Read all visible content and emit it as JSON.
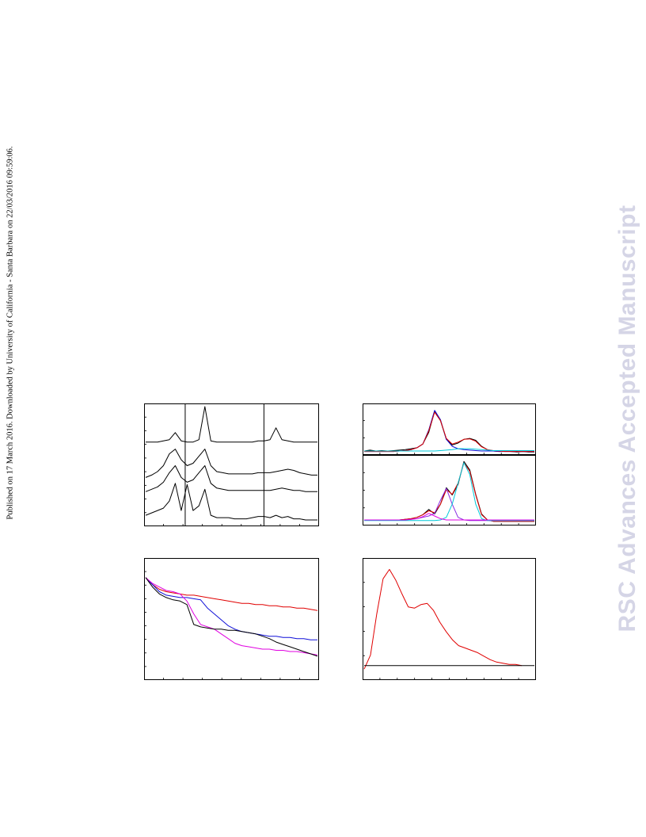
{
  "side_note": "Published on 17 March 2016. Downloaded by University of California - Santa Barbara on 22/03/2016 09:59:06.",
  "watermark": "RSC Advances Accepted Manuscript",
  "colors": {
    "black": "#000000",
    "red": "#e00000",
    "blue": "#1010d8",
    "magenta": "#e000e0",
    "cyan": "#00c8d8",
    "purple": "#8a2be2"
  },
  "chart_data": [
    {
      "type": "line",
      "panel": "top-left",
      "grid": false,
      "series": [
        {
          "color": "black",
          "y": [
            0.7,
            0.7,
            0.7,
            0.71,
            0.72,
            0.78,
            0.71,
            0.7,
            0.7,
            0.72,
            1.0,
            0.71,
            0.7,
            0.7,
            0.7,
            0.7,
            0.7,
            0.7,
            0.7,
            0.71,
            0.71,
            0.72,
            0.82,
            0.72,
            0.71,
            0.7,
            0.7,
            0.7,
            0.7,
            0.7
          ]
        },
        {
          "color": "black",
          "y": [
            0.4,
            0.42,
            0.45,
            0.5,
            0.6,
            0.64,
            0.55,
            0.5,
            0.52,
            0.58,
            0.64,
            0.5,
            0.45,
            0.44,
            0.43,
            0.43,
            0.43,
            0.43,
            0.43,
            0.44,
            0.44,
            0.44,
            0.45,
            0.46,
            0.47,
            0.46,
            0.44,
            0.43,
            0.42,
            0.42
          ]
        },
        {
          "color": "black",
          "y": [
            0.28,
            0.3,
            0.32,
            0.36,
            0.44,
            0.5,
            0.4,
            0.36,
            0.38,
            0.44,
            0.5,
            0.35,
            0.31,
            0.3,
            0.29,
            0.29,
            0.29,
            0.29,
            0.29,
            0.29,
            0.29,
            0.29,
            0.3,
            0.31,
            0.3,
            0.29,
            0.29,
            0.28,
            0.28,
            0.28
          ]
        },
        {
          "color": "black",
          "y": [
            0.08,
            0.1,
            0.12,
            0.14,
            0.2,
            0.35,
            0.12,
            0.34,
            0.12,
            0.16,
            0.3,
            0.08,
            0.06,
            0.06,
            0.06,
            0.05,
            0.05,
            0.05,
            0.06,
            0.07,
            0.07,
            0.06,
            0.08,
            0.06,
            0.07,
            0.05,
            0.05,
            0.04,
            0.04,
            0.04
          ]
        }
      ],
      "reference_lines_x_fraction": [
        0.235,
        0.685
      ]
    },
    {
      "type": "line",
      "panel": "top-right-upper",
      "grid": false,
      "series": [
        {
          "color": "black",
          "y": [
            0.05,
            0.07,
            0.05,
            0.06,
            0.05,
            0.06,
            0.07,
            0.08,
            0.1,
            0.12,
            0.2,
            0.45,
            0.9,
            0.7,
            0.3,
            0.18,
            0.22,
            0.3,
            0.32,
            0.28,
            0.15,
            0.08,
            0.05,
            0.04,
            0.05,
            0.04,
            0.03,
            0.04,
            0.03,
            0.03
          ]
        },
        {
          "color": "blue",
          "y": [
            0.04,
            0.04,
            0.04,
            0.04,
            0.04,
            0.04,
            0.05,
            0.06,
            0.08,
            0.12,
            0.2,
            0.5,
            0.92,
            0.72,
            0.3,
            0.15,
            0.1,
            0.08,
            0.07,
            0.06,
            0.05,
            0.05,
            0.05,
            0.04,
            0.04,
            0.04,
            0.04,
            0.04,
            0.04,
            0.04
          ]
        },
        {
          "color": "red",
          "y": [
            0.04,
            0.04,
            0.04,
            0.04,
            0.04,
            0.04,
            0.05,
            0.06,
            0.08,
            0.12,
            0.2,
            0.48,
            0.88,
            0.7,
            0.32,
            0.2,
            0.24,
            0.3,
            0.31,
            0.26,
            0.14,
            0.08,
            0.06,
            0.05,
            0.04,
            0.04,
            0.04,
            0.04,
            0.04,
            0.04
          ]
        },
        {
          "color": "cyan",
          "y": [
            0.05,
            0.05,
            0.05,
            0.05,
            0.05,
            0.05,
            0.05,
            0.05,
            0.05,
            0.05,
            0.05,
            0.05,
            0.05,
            0.06,
            0.07,
            0.08,
            0.1,
            0.1,
            0.1,
            0.09,
            0.08,
            0.07,
            0.06,
            0.06,
            0.06,
            0.06,
            0.06,
            0.06,
            0.06,
            0.06
          ]
        }
      ]
    },
    {
      "type": "line",
      "panel": "top-right-lower",
      "grid": false,
      "series": [
        {
          "color": "black",
          "y": [
            0.06,
            0.06,
            0.06,
            0.06,
            0.06,
            0.06,
            0.06,
            0.07,
            0.08,
            0.1,
            0.14,
            0.22,
            0.15,
            0.3,
            0.55,
            0.44,
            0.6,
            0.95,
            0.82,
            0.45,
            0.15,
            0.06,
            0.04,
            0.04,
            0.04,
            0.04,
            0.04,
            0.04,
            0.04,
            0.04
          ]
        },
        {
          "color": "red",
          "y": [
            0.06,
            0.06,
            0.06,
            0.06,
            0.06,
            0.06,
            0.06,
            0.07,
            0.08,
            0.1,
            0.14,
            0.2,
            0.17,
            0.3,
            0.52,
            0.45,
            0.62,
            0.93,
            0.8,
            0.44,
            0.14,
            0.06,
            0.04,
            0.04,
            0.04,
            0.04,
            0.04,
            0.04,
            0.04,
            0.04
          ]
        },
        {
          "color": "purple",
          "y": [
            0.06,
            0.06,
            0.06,
            0.06,
            0.06,
            0.06,
            0.06,
            0.06,
            0.07,
            0.08,
            0.1,
            0.12,
            0.16,
            0.36,
            0.54,
            0.3,
            0.1,
            0.06,
            0.05,
            0.05,
            0.05,
            0.05,
            0.05,
            0.05,
            0.05,
            0.05,
            0.05,
            0.05,
            0.05,
            0.05
          ]
        },
        {
          "color": "cyan",
          "y": [
            0.05,
            0.05,
            0.05,
            0.05,
            0.05,
            0.05,
            0.05,
            0.05,
            0.05,
            0.05,
            0.05,
            0.05,
            0.05,
            0.06,
            0.1,
            0.3,
            0.62,
            0.93,
            0.75,
            0.3,
            0.08,
            0.05,
            0.05,
            0.05,
            0.05,
            0.05,
            0.05,
            0.05,
            0.05,
            0.05
          ]
        },
        {
          "color": "magenta",
          "y": [
            0.06,
            0.06,
            0.06,
            0.06,
            0.06,
            0.06,
            0.06,
            0.06,
            0.07,
            0.08,
            0.11,
            0.16,
            0.12,
            0.08,
            0.06,
            0.06,
            0.06,
            0.06,
            0.06,
            0.06,
            0.06,
            0.06,
            0.06,
            0.06,
            0.06,
            0.06,
            0.06,
            0.06,
            0.06,
            0.06
          ]
        }
      ]
    },
    {
      "type": "line",
      "panel": "bottom-left",
      "grid": false,
      "series": [
        {
          "color": "red",
          "y": [
            0.86,
            0.8,
            0.76,
            0.74,
            0.73,
            0.72,
            0.71,
            0.71,
            0.7,
            0.69,
            0.68,
            0.67,
            0.66,
            0.65,
            0.64,
            0.64,
            0.63,
            0.63,
            0.62,
            0.62,
            0.61,
            0.61,
            0.6,
            0.6,
            0.59,
            0.58
          ]
        },
        {
          "color": "blue",
          "y": [
            0.86,
            0.8,
            0.74,
            0.71,
            0.7,
            0.69,
            0.69,
            0.68,
            0.67,
            0.6,
            0.55,
            0.5,
            0.45,
            0.42,
            0.4,
            0.39,
            0.38,
            0.37,
            0.36,
            0.36,
            0.35,
            0.35,
            0.34,
            0.34,
            0.33,
            0.33
          ]
        },
        {
          "color": "magenta",
          "y": [
            0.86,
            0.81,
            0.78,
            0.75,
            0.74,
            0.72,
            0.66,
            0.55,
            0.46,
            0.44,
            0.42,
            0.38,
            0.34,
            0.3,
            0.28,
            0.27,
            0.26,
            0.25,
            0.25,
            0.24,
            0.24,
            0.23,
            0.23,
            0.22,
            0.21,
            0.2
          ]
        },
        {
          "color": "black",
          "y": [
            0.86,
            0.78,
            0.72,
            0.69,
            0.67,
            0.66,
            0.63,
            0.46,
            0.44,
            0.43,
            0.42,
            0.42,
            0.41,
            0.41,
            0.4,
            0.39,
            0.38,
            0.36,
            0.34,
            0.31,
            0.29,
            0.27,
            0.25,
            0.23,
            0.21,
            0.19
          ]
        }
      ]
    },
    {
      "type": "line",
      "panel": "bottom-right",
      "grid": false,
      "series": [
        {
          "color": "red",
          "y": [
            0.08,
            0.2,
            0.55,
            0.85,
            0.93,
            0.84,
            0.72,
            0.61,
            0.6,
            0.63,
            0.64,
            0.58,
            0.48,
            0.4,
            0.33,
            0.28,
            0.26,
            0.24,
            0.22,
            0.19,
            0.16,
            0.14,
            0.13,
            0.12,
            0.12,
            0.11,
            null,
            null
          ]
        },
        {
          "color": "black",
          "y": [
            0.11,
            0.11,
            0.11,
            0.11,
            0.11,
            0.11,
            0.11,
            0.11,
            0.11,
            0.11,
            0.11,
            0.11,
            0.11,
            0.11,
            0.11,
            0.11,
            0.11,
            0.11,
            0.11,
            0.11,
            0.11,
            0.11,
            0.11,
            0.11,
            0.11,
            0.11,
            0.11,
            0.11
          ]
        }
      ]
    }
  ]
}
